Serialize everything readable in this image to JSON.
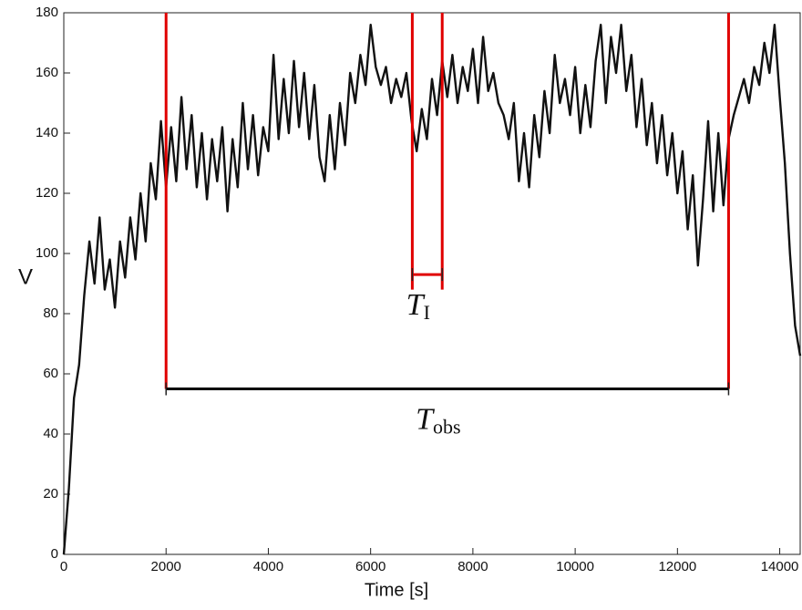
{
  "chart_data": {
    "type": "line",
    "x_label": "Time [s]",
    "y_label": "V",
    "xlim": [
      0,
      14400
    ],
    "ylim": [
      0,
      180
    ],
    "xticks": [
      0,
      2000,
      4000,
      6000,
      8000,
      10000,
      12000,
      14000
    ],
    "yticks": [
      0,
      20,
      40,
      60,
      80,
      100,
      120,
      140,
      160,
      180
    ],
    "x": [
      0,
      100,
      200,
      300,
      400,
      500,
      600,
      700,
      800,
      900,
      1000,
      1100,
      1200,
      1300,
      1400,
      1500,
      1600,
      1700,
      1800,
      1900,
      2000,
      2100,
      2200,
      2300,
      2400,
      2500,
      2600,
      2700,
      2800,
      2900,
      3000,
      3100,
      3200,
      3300,
      3400,
      3500,
      3600,
      3700,
      3800,
      3900,
      4000,
      4100,
      4200,
      4300,
      4400,
      4500,
      4600,
      4700,
      4800,
      4900,
      5000,
      5100,
      5200,
      5300,
      5400,
      5500,
      5600,
      5700,
      5800,
      5900,
      6000,
      6100,
      6200,
      6300,
      6400,
      6500,
      6600,
      6700,
      6800,
      6900,
      7000,
      7100,
      7200,
      7300,
      7400,
      7500,
      7600,
      7700,
      7800,
      7900,
      8000,
      8100,
      8200,
      8300,
      8400,
      8500,
      8600,
      8700,
      8800,
      8900,
      9000,
      9100,
      9200,
      9300,
      9400,
      9500,
      9600,
      9700,
      9800,
      9900,
      10000,
      10100,
      10200,
      10300,
      10400,
      10500,
      10600,
      10700,
      10800,
      10900,
      11000,
      11100,
      11200,
      11300,
      11400,
      11500,
      11600,
      11700,
      11800,
      11900,
      12000,
      12100,
      12200,
      12300,
      12400,
      12500,
      12600,
      12700,
      12800,
      12900,
      13000,
      13100,
      13200,
      13300,
      13400,
      13500,
      13600,
      13700,
      13800,
      13900,
      14000,
      14100,
      14200,
      14300,
      14400
    ],
    "series": [
      {
        "color": "#111111",
        "values": [
          0,
          22,
          52,
          63,
          86,
          104,
          90,
          112,
          88,
          98,
          82,
          104,
          92,
          112,
          98,
          120,
          104,
          130,
          118,
          144,
          122,
          142,
          124,
          152,
          128,
          146,
          122,
          140,
          118,
          138,
          124,
          142,
          114,
          138,
          122,
          150,
          128,
          146,
          126,
          142,
          134,
          166,
          138,
          158,
          140,
          164,
          142,
          160,
          138,
          156,
          132,
          124,
          146,
          128,
          150,
          136,
          160,
          150,
          166,
          156,
          176,
          162,
          156,
          162,
          150,
          158,
          152,
          160,
          144,
          134,
          148,
          138,
          158,
          146,
          164,
          152,
          166,
          150,
          162,
          154,
          168,
          150,
          172,
          154,
          160,
          150,
          146,
          138,
          150,
          124,
          140,
          122,
          146,
          132,
          154,
          140,
          166,
          150,
          158,
          146,
          162,
          140,
          156,
          142,
          164,
          176,
          150,
          172,
          160,
          176,
          154,
          166,
          142,
          158,
          136,
          150,
          130,
          146,
          126,
          140,
          120,
          134,
          108,
          126,
          96,
          118,
          144,
          114,
          140,
          116,
          138,
          146,
          152,
          158,
          150,
          162,
          156,
          170,
          160,
          176,
          152,
          130,
          100,
          76,
          66
        ]
      }
    ],
    "markers": [
      {
        "x": 2000,
        "y_bottom": 55,
        "color": "#e00000"
      },
      {
        "x": 6815,
        "y_bottom": 88,
        "color": "#e00000"
      },
      {
        "x": 7400,
        "y_bottom": 88,
        "color": "#e00000"
      },
      {
        "x": 13000,
        "y_bottom": 55,
        "color": "#e00000"
      }
    ],
    "spans": [
      {
        "label": "T",
        "subscript": "I",
        "x_start": 6815,
        "x_end": 7400,
        "y": 93,
        "color": "#e00000"
      },
      {
        "label": "T",
        "subscript": "obs",
        "x_start": 2000,
        "x_end": 13000,
        "y": 55,
        "color": "#000000"
      }
    ]
  }
}
